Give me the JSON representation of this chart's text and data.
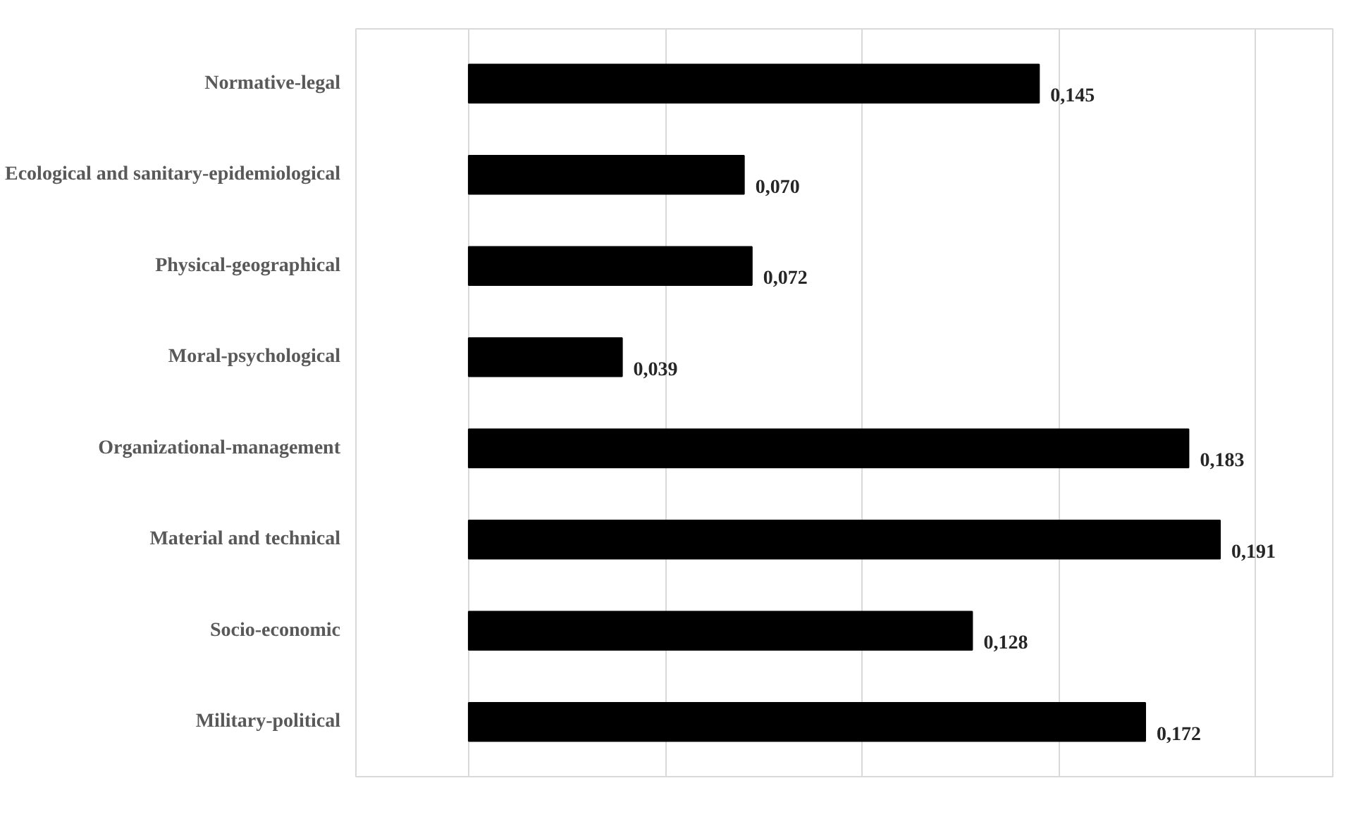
{
  "chart_data": {
    "type": "bar",
    "orientation": "horizontal",
    "categories": [
      "Normative-legal",
      "Ecological and sanitary-epidemiological",
      "Physical-geographical",
      "Moral-psychological",
      "Organizational-management",
      "Material and technical",
      "Socio-economic",
      "Military-political"
    ],
    "values": [
      0.145,
      0.07,
      0.072,
      0.039,
      0.183,
      0.191,
      0.128,
      0.172
    ],
    "value_labels": [
      "0,145",
      "0,070",
      "0,072",
      "0,039",
      "0,183",
      "0,191",
      "0,128",
      "0,172"
    ],
    "color": "#000000",
    "tick_labels": "y",
    "grid": "x"
  }
}
